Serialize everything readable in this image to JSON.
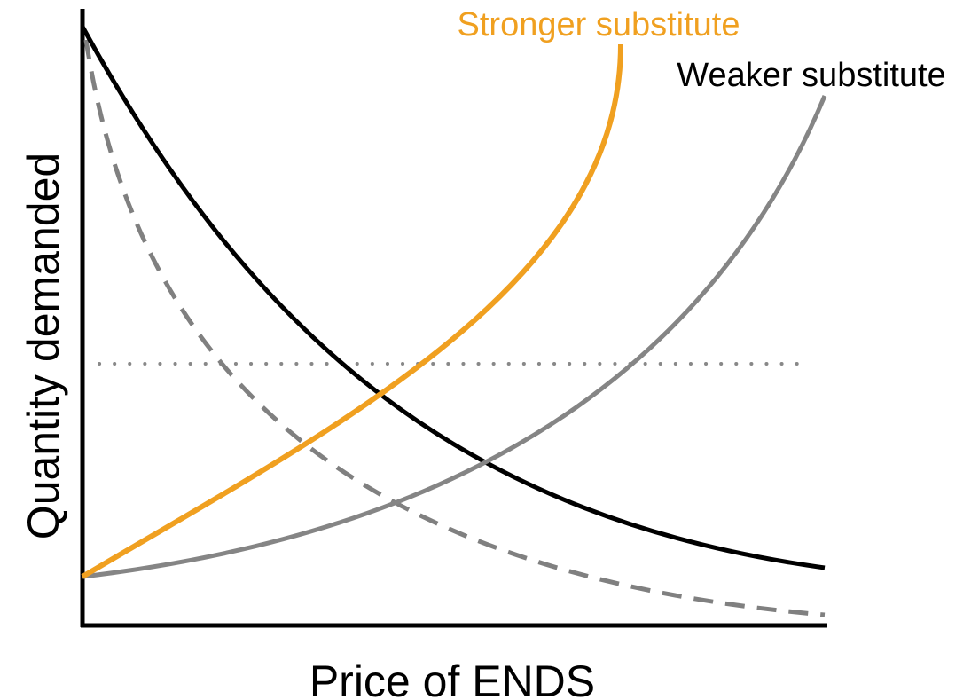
{
  "axes": {
    "x_label": "Price of ENDS",
    "y_label": "Quantity demanded"
  },
  "curve_labels": {
    "stronger": "Stronger substitute",
    "weaker": "Weaker substitute"
  }
}
